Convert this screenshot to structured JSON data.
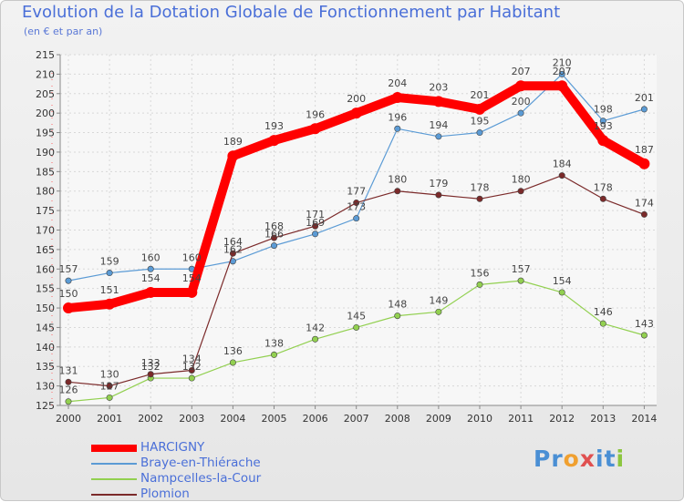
{
  "chart_data": {
    "type": "line",
    "title": "Evolution de la Dotation Globale de Fonctionnement par Habitant",
    "subtitle": "(en € et par an)",
    "xlabel": "",
    "ylabel": "",
    "x": [
      "2000",
      "2001",
      "2002",
      "2003",
      "2004",
      "2005",
      "2006",
      "2007",
      "2008",
      "2009",
      "2010",
      "2011",
      "2012",
      "2013",
      "2014"
    ],
    "ylim": [
      125,
      215
    ],
    "yticks": [
      125,
      130,
      135,
      140,
      145,
      150,
      155,
      160,
      165,
      170,
      175,
      180,
      185,
      190,
      195,
      200,
      205,
      210,
      215
    ],
    "grid": true,
    "legend_position": "bottom-left",
    "series": [
      {
        "name": "HARCIGNY",
        "color": "#ff0000",
        "values": [
          150,
          151,
          154,
          154,
          189,
          193,
          196,
          200,
          204,
          203,
          201,
          207,
          207,
          193,
          187
        ],
        "labels": [
          "150",
          "151",
          "154",
          "154",
          "189",
          "193",
          "196",
          "200",
          "204",
          "203",
          "201",
          "207",
          "207",
          "193",
          "187"
        ]
      },
      {
        "name": "Braye-en-Thiérache",
        "color": "#5b9bd5",
        "values": [
          157,
          159,
          160,
          160,
          162,
          166,
          169,
          173,
          196,
          194,
          195,
          200,
          210,
          198,
          201
        ],
        "labels": [
          "157",
          "159",
          "160",
          "160",
          "162",
          "166",
          "169",
          "173",
          "196",
          "194",
          "195",
          "200",
          "210",
          "198",
          "201"
        ]
      },
      {
        "name": "Nampcelles-la-Cour",
        "color": "#92d050",
        "values": [
          126,
          127,
          132,
          132,
          136,
          138,
          142,
          145,
          148,
          149,
          156,
          157,
          154,
          146,
          143
        ],
        "labels": [
          "126",
          "127",
          "132",
          "132",
          "136",
          "138",
          "142",
          "145",
          "148",
          "149",
          "156",
          "157",
          "154",
          "146",
          "143"
        ]
      },
      {
        "name": "Plomion",
        "color": "#7b2a2a",
        "values": [
          131,
          130,
          133,
          134,
          164,
          168,
          171,
          177,
          180,
          179,
          178,
          180,
          184,
          178,
          174
        ],
        "labels": [
          "131",
          "130",
          "133",
          "134",
          "164",
          "168",
          "171",
          "177",
          "180",
          "179",
          "178",
          "180",
          "184",
          "178",
          "174"
        ]
      }
    ]
  },
  "logo": {
    "text": "Proxiti",
    "letters": [
      "P",
      "r",
      "o",
      "x",
      "i",
      "t",
      "i"
    ],
    "colors": [
      "#4a8fd4",
      "#4a8fd4",
      "#f0a030",
      "#e05050",
      "#4a8fd4",
      "#4a8fd4",
      "#8cc63f"
    ]
  }
}
